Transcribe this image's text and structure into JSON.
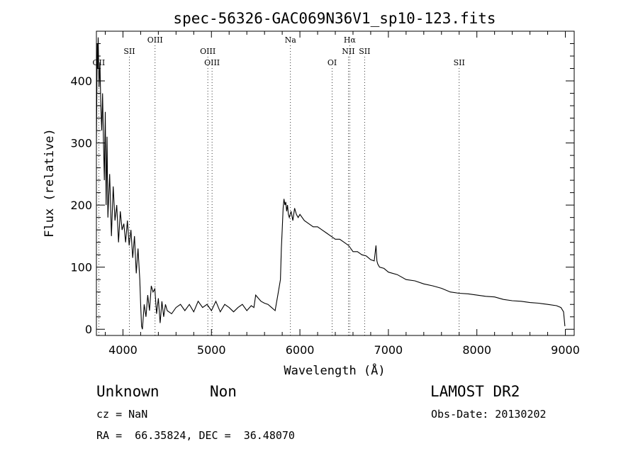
{
  "chart_data": {
    "type": "line",
    "title": "spec-56326-GAC069N36V1_sp10-123.fits",
    "xlabel": "Wavelength (Å)",
    "ylabel": "Flux (relative)",
    "xlim": [
      3700,
      9100
    ],
    "ylim": [
      -10,
      480
    ],
    "xticks": [
      4000,
      5000,
      6000,
      7000,
      8000,
      9000
    ],
    "yticks": [
      0,
      100,
      200,
      300,
      400
    ],
    "grid": false,
    "color": "#000000",
    "line_markers": [
      {
        "label": "OII",
        "wavelength": 3727
      },
      {
        "label": "SII",
        "wavelength": 4072
      },
      {
        "label": "OIII",
        "wavelength": 4363
      },
      {
        "label": "OIII",
        "wavelength": 4959
      },
      {
        "label": "OIII",
        "wavelength": 5007
      },
      {
        "label": "Na",
        "wavelength": 5893
      },
      {
        "label": "OI",
        "wavelength": 6364
      },
      {
        "label": "Hα",
        "wavelength": 6563
      },
      {
        "label": "NII",
        "wavelength": 6548
      },
      {
        "label": "SII",
        "wavelength": 6731
      },
      {
        "label": "SII",
        "wavelength": 7800
      }
    ],
    "spectrum": {
      "x": [
        3700,
        3705,
        3710,
        3715,
        3720,
        3730,
        3740,
        3750,
        3760,
        3770,
        3780,
        3790,
        3800,
        3810,
        3820,
        3830,
        3850,
        3870,
        3890,
        3910,
        3930,
        3950,
        3970,
        3990,
        4010,
        4030,
        4050,
        4070,
        4090,
        4110,
        4130,
        4150,
        4170,
        4190,
        4200,
        4210,
        4220,
        4240,
        4260,
        4280,
        4300,
        4320,
        4340,
        4360,
        4380,
        4400,
        4420,
        4440,
        4460,
        4480,
        4500,
        4550,
        4600,
        4650,
        4700,
        4750,
        4800,
        4850,
        4900,
        4950,
        5000,
        5050,
        5100,
        5150,
        5200,
        5250,
        5300,
        5350,
        5400,
        5450,
        5480,
        5500,
        5530,
        5560,
        5600,
        5640,
        5680,
        5720,
        5750,
        5780,
        5790,
        5800,
        5810,
        5820,
        5830,
        5840,
        5850,
        5860,
        5870,
        5880,
        5900,
        5920,
        5940,
        5960,
        5980,
        6000,
        6050,
        6100,
        6150,
        6200,
        6250,
        6300,
        6350,
        6400,
        6450,
        6500,
        6550,
        6600,
        6650,
        6700,
        6750,
        6800,
        6840,
        6860,
        6870,
        6880,
        6900,
        6950,
        7000,
        7100,
        7200,
        7300,
        7400,
        7500,
        7600,
        7700,
        7800,
        7900,
        8000,
        8100,
        8200,
        8300,
        8400,
        8500,
        8600,
        8700,
        8800,
        8900,
        8950,
        8980,
        8995
      ],
      "y": [
        300,
        380,
        460,
        420,
        470,
        390,
        430,
        360,
        320,
        380,
        300,
        240,
        350,
        200,
        310,
        180,
        250,
        150,
        230,
        175,
        200,
        140,
        190,
        160,
        170,
        140,
        175,
        135,
        160,
        115,
        150,
        90,
        130,
        80,
        40,
        5,
        0,
        40,
        20,
        55,
        30,
        70,
        60,
        65,
        25,
        50,
        10,
        45,
        20,
        40,
        30,
        25,
        35,
        40,
        30,
        40,
        28,
        45,
        35,
        40,
        30,
        45,
        28,
        40,
        35,
        28,
        35,
        40,
        30,
        38,
        35,
        55,
        50,
        45,
        42,
        40,
        35,
        30,
        55,
        80,
        130,
        160,
        195,
        210,
        200,
        205,
        190,
        200,
        185,
        180,
        190,
        175,
        195,
        185,
        180,
        185,
        175,
        170,
        165,
        165,
        160,
        155,
        150,
        145,
        145,
        140,
        135,
        125,
        125,
        120,
        118,
        112,
        110,
        135,
        110,
        105,
        100,
        98,
        92,
        88,
        80,
        78,
        73,
        70,
        66,
        60,
        58,
        57,
        55,
        53,
        52,
        48,
        46,
        45,
        43,
        42,
        40,
        38,
        35,
        28,
        5
      ]
    }
  },
  "info": {
    "object_class": "Unknown",
    "subclass": "Non",
    "survey": "LAMOST DR2",
    "redshift_text": "cz = NaN",
    "obs_date_text": "Obs-Date: 20130202",
    "coords_text": "RA =  66.35824, DEC =  36.48070"
  }
}
